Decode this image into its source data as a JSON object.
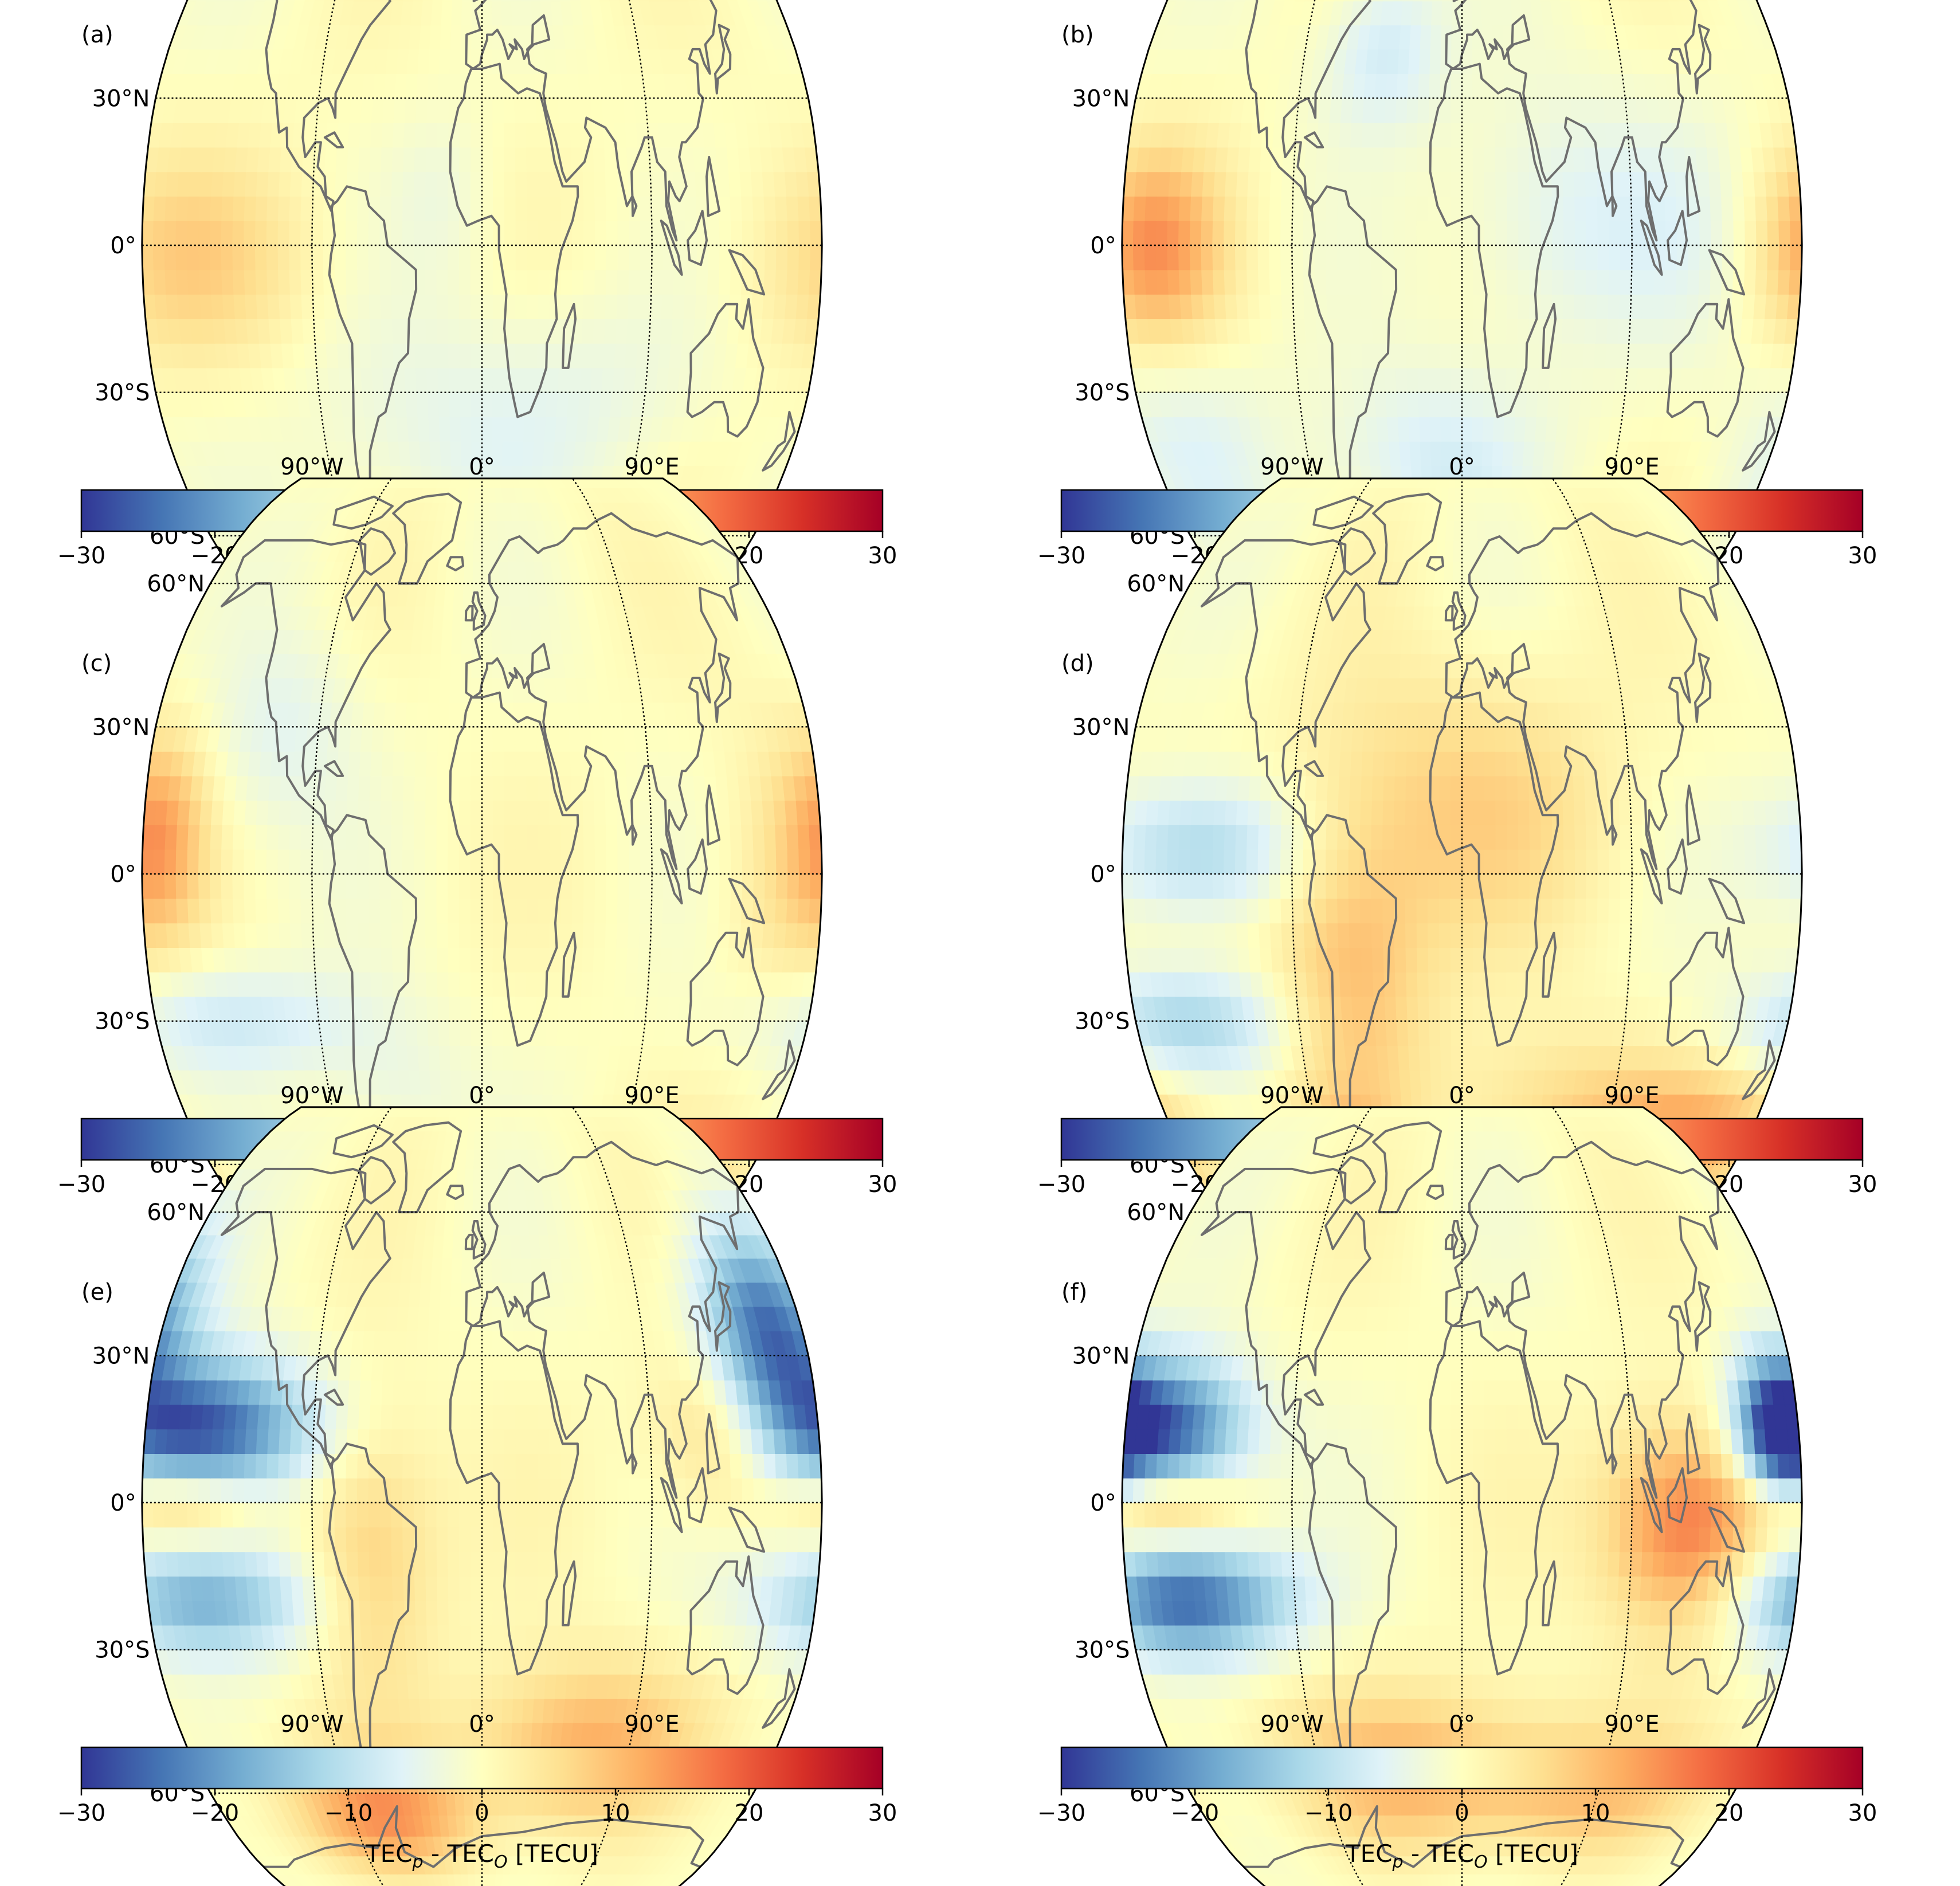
{
  "figure": {
    "tick_values": [
      "−30",
      "−20",
      "−10",
      "0",
      "10",
      "20",
      "30"
    ],
    "colorbar_label_parts": [
      "TEC",
      "p",
      " - TEC",
      "O",
      " [TECU]"
    ],
    "lat_labels": [
      "60°N",
      "30°N",
      "0°",
      "30°S",
      "60°S"
    ],
    "lon_labels": [
      "90°W",
      "0°",
      "90°E"
    ]
  },
  "chart_data": [
    {
      "type": "heatmap",
      "panel_label": "(a)",
      "projection": "robinson",
      "colormap": "RdYlBu_r",
      "vmin": -30,
      "vmax": 30,
      "colorbar_ticks": [
        -30,
        -20,
        -10,
        0,
        10,
        20,
        30
      ],
      "colorbar_label": "TECp - TECO [TECU]",
      "features": [
        {
          "lon": -150,
          "lat": -3,
          "value": 7,
          "w": 50,
          "h": 15
        },
        {
          "lon": -30,
          "lat": -40,
          "value": -4,
          "w": 60,
          "h": 20
        },
        {
          "lon": 60,
          "lat": -30,
          "value": -3,
          "w": 50,
          "h": 15
        },
        {
          "lon": -20,
          "lat": 10,
          "value": -3,
          "w": 20,
          "h": 12
        }
      ]
    },
    {
      "type": "heatmap",
      "panel_label": "(b)",
      "projection": "robinson",
      "colormap": "RdYlBu_r",
      "vmin": -30,
      "vmax": 30,
      "colorbar_ticks": [
        -30,
        -20,
        -10,
        0,
        10,
        20,
        30
      ],
      "colorbar_label": "TECp - TECO [TECU]",
      "features": [
        {
          "lon": -165,
          "lat": 0,
          "value": 14,
          "w": 28,
          "h": 14
        },
        {
          "lon": -45,
          "lat": 40,
          "value": -8,
          "w": 25,
          "h": 12
        },
        {
          "lon": -20,
          "lat": -45,
          "value": -7,
          "w": 45,
          "h": 14
        },
        {
          "lon": -10,
          "lat": -75,
          "value": -6,
          "w": 35,
          "h": 10
        },
        {
          "lon": 100,
          "lat": 5,
          "value": -4,
          "w": 50,
          "h": 20
        },
        {
          "lon": 40,
          "lat": 5,
          "value": -4,
          "w": 35,
          "h": 18
        },
        {
          "lon": -155,
          "lat": -40,
          "value": -5,
          "w": 35,
          "h": 14
        }
      ]
    },
    {
      "type": "heatmap",
      "panel_label": "(c)",
      "projection": "robinson",
      "colormap": "RdYlBu_r",
      "vmin": -30,
      "vmax": 30,
      "colorbar_ticks": [
        -30,
        -20,
        -10,
        0,
        10,
        20,
        30
      ],
      "colorbar_label": "TECp - TECO [TECU]",
      "features": [
        {
          "lon": -172,
          "lat": 8,
          "value": 11,
          "w": 18,
          "h": 14
        },
        {
          "lon": -140,
          "lat": -30,
          "value": -8,
          "w": 50,
          "h": 8
        },
        {
          "lon": -110,
          "lat": 30,
          "value": -5,
          "w": 30,
          "h": 15
        },
        {
          "lon": 140,
          "lat": -68,
          "value": 7,
          "w": 40,
          "h": 10
        },
        {
          "lon": 160,
          "lat": 0,
          "value": 5,
          "w": 25,
          "h": 20
        },
        {
          "lon": -50,
          "lat": -45,
          "value": -4,
          "w": 30,
          "h": 12
        }
      ]
    },
    {
      "type": "heatmap",
      "panel_label": "(d)",
      "projection": "robinson",
      "colormap": "RdYlBu_r",
      "vmin": -30,
      "vmax": 30,
      "colorbar_ticks": [
        -30,
        -20,
        -10,
        0,
        10,
        20,
        30
      ],
      "colorbar_label": "TECp - TECO [TECU]",
      "features": [
        {
          "lon": -140,
          "lat": 5,
          "value": -13,
          "w": 40,
          "h": 10
        },
        {
          "lon": -150,
          "lat": -30,
          "value": -12,
          "w": 40,
          "h": 8
        },
        {
          "lon": -70,
          "lat": -65,
          "value": 16,
          "w": 22,
          "h": 10
        },
        {
          "lon": -60,
          "lat": -20,
          "value": 10,
          "w": 30,
          "h": 22
        },
        {
          "lon": 150,
          "lat": -55,
          "value": 12,
          "w": 40,
          "h": 10
        },
        {
          "lon": 0,
          "lat": 15,
          "value": 7,
          "w": 60,
          "h": 20
        },
        {
          "lon": 60,
          "lat": -50,
          "value": 7,
          "w": 50,
          "h": 12
        }
      ]
    },
    {
      "type": "heatmap",
      "panel_label": "(e)",
      "projection": "robinson",
      "colormap": "RdYlBu_r",
      "vmin": -30,
      "vmax": 30,
      "colorbar_ticks": [
        -30,
        -20,
        -10,
        0,
        10,
        20,
        30
      ],
      "colorbar_label": "TECp - TECO [TECU]",
      "features": [
        {
          "lon": -150,
          "lat": 15,
          "value": -28,
          "w": 40,
          "h": 10
        },
        {
          "lon": -150,
          "lat": -20,
          "value": -18,
          "w": 40,
          "h": 8
        },
        {
          "lon": -160,
          "lat": 0,
          "value": 10,
          "w": 30,
          "h": 5
        },
        {
          "lon": 160,
          "lat": 35,
          "value": -25,
          "w": 25,
          "h": 15
        },
        {
          "lon": 130,
          "lat": 15,
          "value": 10,
          "w": 25,
          "h": 12
        },
        {
          "lon": -70,
          "lat": -65,
          "value": 13,
          "w": 50,
          "h": 10
        },
        {
          "lon": 60,
          "lat": -50,
          "value": 12,
          "w": 45,
          "h": 12
        },
        {
          "lon": -60,
          "lat": -10,
          "value": 9,
          "w": 25,
          "h": 20
        }
      ]
    },
    {
      "type": "heatmap",
      "panel_label": "(f)",
      "projection": "robinson",
      "colormap": "RdYlBu_r",
      "vmin": -30,
      "vmax": 30,
      "colorbar_ticks": [
        -30,
        -20,
        -10,
        0,
        10,
        20,
        30
      ],
      "colorbar_label": "TECp - TECO [TECU]",
      "features": [
        {
          "lon": -160,
          "lat": 15,
          "value": -28,
          "w": 30,
          "h": 10
        },
        {
          "lon": -150,
          "lat": -20,
          "value": -26,
          "w": 40,
          "h": 8
        },
        {
          "lon": -160,
          "lat": 0,
          "value": 12,
          "w": 30,
          "h": 5
        },
        {
          "lon": 170,
          "lat": 15,
          "value": -26,
          "w": 15,
          "h": 10
        },
        {
          "lon": 120,
          "lat": -5,
          "value": 18,
          "w": 30,
          "h": 15
        },
        {
          "lon": -30,
          "lat": -55,
          "value": 10,
          "w": 60,
          "h": 12
        },
        {
          "lon": 80,
          "lat": -60,
          "value": 8,
          "w": 60,
          "h": 10
        }
      ]
    }
  ]
}
